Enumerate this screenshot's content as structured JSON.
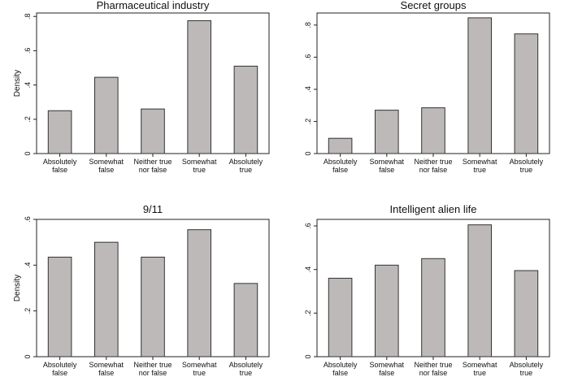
{
  "colors": {
    "bar_fill": "#bdb9b9",
    "bar_stroke": "#333333",
    "frame": "#222222"
  },
  "chart_data": [
    {
      "type": "bar",
      "title": "Pharmaceutical industry",
      "ylabel": "Density",
      "categories": [
        "Absolutely|false",
        "Somewhat|false",
        "Neither true|nor false",
        "Somewhat|true",
        "Absolutely|true"
      ],
      "values": [
        0.25,
        0.445,
        0.26,
        0.775,
        0.51
      ],
      "ylim": [
        0,
        0.82
      ],
      "yticks": [
        0,
        0.2,
        0.4,
        0.6,
        0.8
      ],
      "yticklabels": [
        "0",
        ".2",
        ".4",
        ".6",
        ".8"
      ]
    },
    {
      "type": "bar",
      "title": "Secret groups",
      "ylabel": "",
      "categories": [
        "Absolutely|false",
        "Somewhat|false",
        "Neither true|nor false",
        "Somewhat|true",
        "Absolutely|true"
      ],
      "values": [
        0.095,
        0.27,
        0.285,
        0.845,
        0.745
      ],
      "ylim": [
        0,
        0.875
      ],
      "yticks": [
        0,
        0.2,
        0.4,
        0.6,
        0.8
      ],
      "yticklabels": [
        "0",
        ".2",
        ".4",
        ".6",
        ".8"
      ]
    },
    {
      "type": "bar",
      "title": "9/11",
      "ylabel": "Density",
      "categories": [
        "Absolutely|false",
        "Somewhat|false",
        "Neither true|nor false",
        "Somewhat|true",
        "Absolutely|true"
      ],
      "values": [
        0.435,
        0.5,
        0.435,
        0.555,
        0.32
      ],
      "ylim": [
        0,
        0.6
      ],
      "yticks": [
        0,
        0.2,
        0.4,
        0.6
      ],
      "yticklabels": [
        "0",
        ".2",
        ".4",
        ".6"
      ]
    },
    {
      "type": "bar",
      "title": "Intelligent alien life",
      "ylabel": "",
      "categories": [
        "Absolutely|false",
        "Somewhat|false",
        "Neither true|nor false",
        "Somewhat|true",
        "Absolutely|true"
      ],
      "values": [
        0.36,
        0.42,
        0.45,
        0.605,
        0.395
      ],
      "ylim": [
        0,
        0.63
      ],
      "yticks": [
        0,
        0.2,
        0.4,
        0.6
      ],
      "yticklabels": [
        "0",
        ".2",
        ".4",
        ".6"
      ]
    }
  ]
}
